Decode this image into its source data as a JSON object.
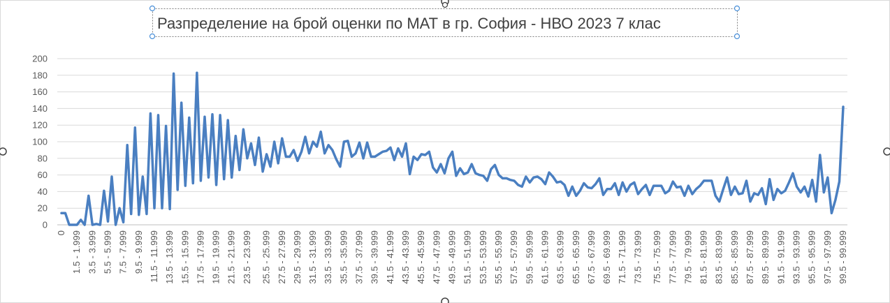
{
  "chart_data": {
    "type": "line",
    "title": "Разпределение на брой оценки по МАТ в гр. София - НВО 2023 7 клас",
    "xlabel": "",
    "ylabel": "",
    "ylim": [
      0,
      200
    ],
    "y_ticks": [
      0,
      20,
      40,
      60,
      80,
      100,
      120,
      140,
      160,
      180,
      200
    ],
    "grid": "horizontal",
    "legend": "none",
    "colors": {
      "line": "#4a7fc1",
      "grid": "#d9d9d9",
      "axis": "#bfbfbf",
      "text": "#595959",
      "title": "#404040",
      "handle": "#4a90d9"
    },
    "x_labels": [
      "0",
      "1.5 - 1.999",
      "3.5 - 3.999",
      "5.5 - 5.999",
      "7.5 - 7.999",
      "9.5 - 9.999",
      "11.5 - 11.999",
      "13.5 - 13.999",
      "15.5 - 15.999",
      "17.5 - 17.999",
      "19.5 - 19.999",
      "21.5 - 21.999",
      "23.5 - 23.999",
      "25.5 - 25.999",
      "27.5 - 27.999",
      "29.5 - 29.999",
      "31.5 - 31.999",
      "33.5 - 33.999",
      "35.5 - 35.999",
      "37.5 - 37.999",
      "39.5 - 39.999",
      "41.5 - 41.999",
      "43.5 - 43.999",
      "45.5 - 45.999",
      "47.5 - 47.999",
      "49.5 - 49.999",
      "51.5 - 51.999",
      "53.5 - 53.999",
      "55.5 - 55.999",
      "57.5 - 57.999",
      "59.5 - 59.999",
      "61.5 - 61.999",
      "63.5 - 63.999",
      "65.5 - 65.999",
      "67.5 - 67.999",
      "69.5 - 69.999",
      "71.5 - 71.999",
      "73.5 - 73.999",
      "75.5 - 75.999",
      "77.5 - 77.999",
      "79.5 - 79.999",
      "81.5 - 81.999",
      "83.5 - 83.999",
      "85.5 - 85.999",
      "87.5 - 87.999",
      "89.5 - 89.999",
      "91.5 - 91.999",
      "93.5 - 93.999",
      "95.5 - 95.999",
      "97.5 - 97.999",
      "99.5 - 99.999"
    ],
    "series": [
      {
        "values": [
          14,
          14,
          0,
          0,
          0,
          6,
          0,
          35,
          0,
          1,
          0,
          41,
          4,
          58,
          0,
          20,
          3,
          96,
          13,
          117,
          12,
          58,
          13,
          134,
          20,
          132,
          20,
          119,
          19,
          182,
          42,
          147,
          47,
          129,
          50,
          183,
          53,
          130,
          57,
          133,
          48,
          132,
          55,
          126,
          57,
          107,
          66,
          115,
          80,
          98,
          72,
          105,
          64,
          85,
          70,
          100,
          74,
          104,
          82,
          82,
          90,
          77,
          88,
          106,
          86,
          100,
          94,
          112,
          86,
          96,
          90,
          79,
          70,
          100,
          101,
          82,
          86,
          99,
          80,
          99,
          82,
          82,
          85,
          88,
          89,
          93,
          78,
          92,
          82,
          98,
          61,
          82,
          78,
          85,
          84,
          88,
          69,
          63,
          73,
          62,
          80,
          88,
          59,
          68,
          61,
          63,
          73,
          62,
          60,
          59,
          53,
          67,
          72,
          60,
          56,
          56,
          54,
          53,
          48,
          46,
          58,
          51,
          57,
          58,
          55,
          49,
          63,
          58,
          51,
          52,
          48,
          35,
          46,
          35,
          41,
          50,
          45,
          44,
          49,
          56,
          36,
          43,
          43,
          50,
          36,
          51,
          40,
          48,
          51,
          37,
          43,
          48,
          36,
          47,
          47,
          47,
          38,
          41,
          52,
          45,
          46,
          35,
          47,
          37,
          43,
          47,
          53,
          53,
          53,
          35,
          28,
          43,
          57,
          36,
          46,
          37,
          38,
          53,
          28,
          38,
          36,
          44,
          25,
          55,
          30,
          43,
          38,
          41,
          51,
          62,
          46,
          39,
          46,
          34,
          54,
          28,
          84,
          39,
          57,
          14,
          30,
          52,
          142
        ]
      }
    ]
  }
}
